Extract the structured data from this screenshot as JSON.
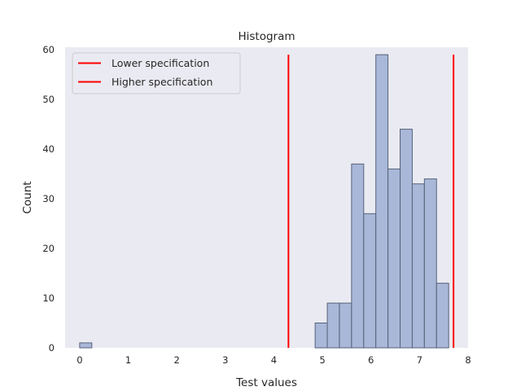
{
  "chart_data": {
    "type": "bar",
    "title": "Histogram",
    "xlabel": "Test values",
    "ylabel": "Count",
    "xlim": [
      -0.3,
      8.0
    ],
    "ylim": [
      0,
      60.5
    ],
    "xticks": [
      0,
      1,
      2,
      3,
      4,
      5,
      6,
      7,
      8
    ],
    "yticks": [
      0,
      10,
      20,
      30,
      40,
      50,
      60
    ],
    "grid": false,
    "legend_position": "top-left",
    "bin_width": 0.25,
    "bins": [
      {
        "start": 0.0,
        "count": 1
      },
      {
        "start": 4.85,
        "count": 5
      },
      {
        "start": 5.1,
        "count": 9
      },
      {
        "start": 5.35,
        "count": 9
      },
      {
        "start": 5.6,
        "count": 37
      },
      {
        "start": 5.85,
        "count": 27
      },
      {
        "start": 6.1,
        "count": 59
      },
      {
        "start": 6.35,
        "count": 36
      },
      {
        "start": 6.6,
        "count": 44
      },
      {
        "start": 6.85,
        "count": 33
      },
      {
        "start": 7.1,
        "count": 34
      },
      {
        "start": 7.35,
        "count": 13
      }
    ],
    "bar_fill": "#a9b8d8",
    "bar_edge": "#55627a",
    "background": "#eaeaf2",
    "spec_lines": [
      {
        "name": "Lower specification",
        "x": 4.3,
        "color": "#ff0000",
        "y_top": 59
      },
      {
        "name": "Higher specification",
        "x": 7.7,
        "color": "#ff0000",
        "y_top": 59
      }
    ]
  }
}
